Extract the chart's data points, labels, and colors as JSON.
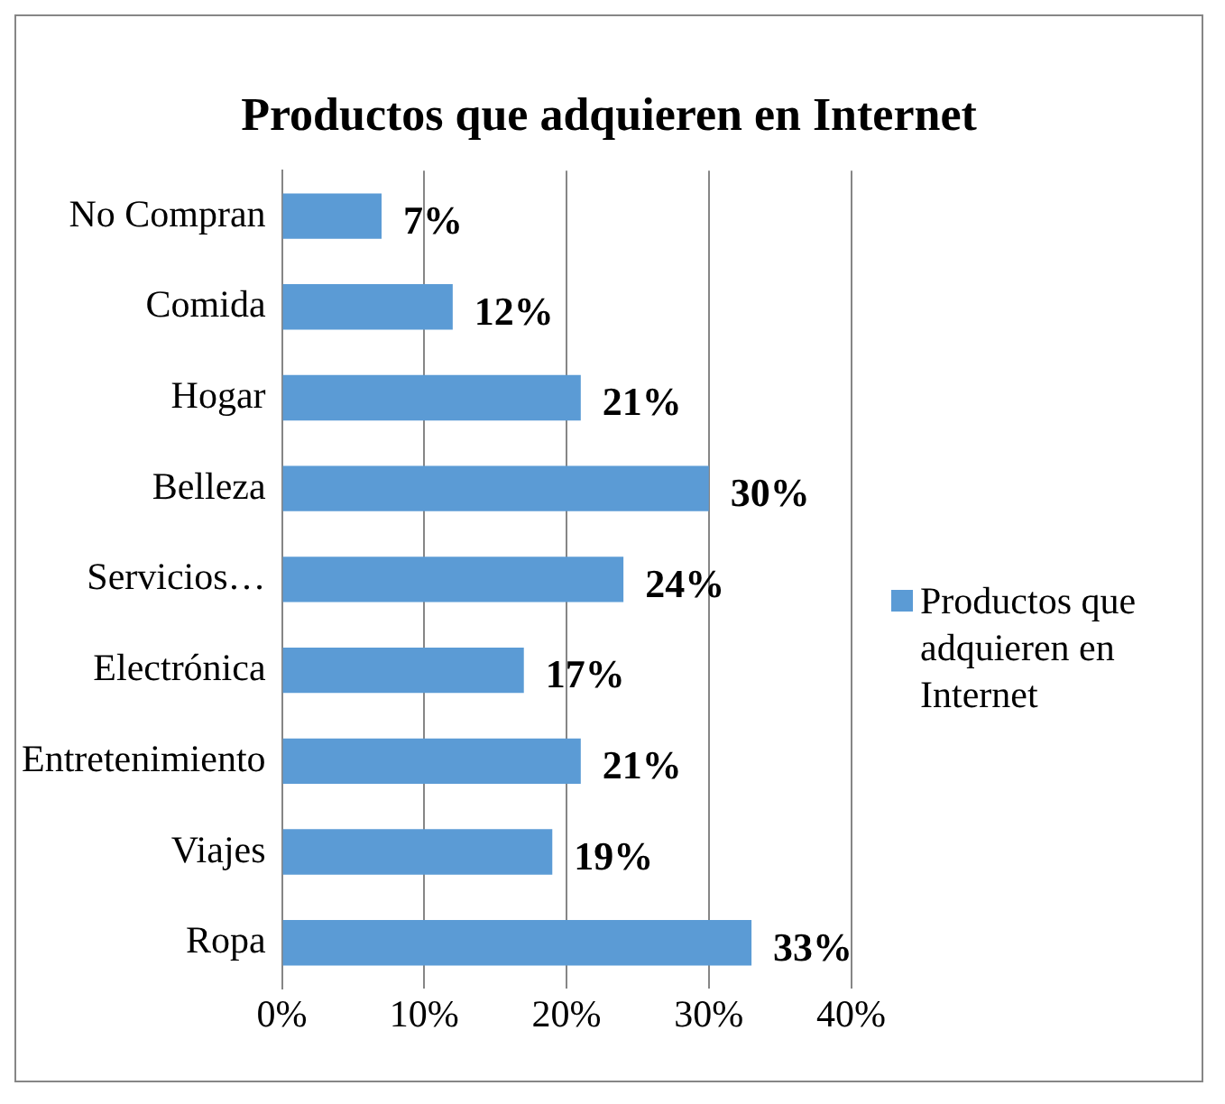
{
  "chart_data": {
    "type": "bar",
    "orientation": "horizontal",
    "title": "Productos que adquieren en Internet",
    "categories": [
      "No Compran",
      "Comida",
      "Hogar",
      "Belleza",
      "Servicios…",
      "Electrónica",
      "Entretenimiento",
      "Viajes",
      "Ropa"
    ],
    "series": [
      {
        "name": "Productos que adquieren en Internet",
        "color": "#5b9bd5",
        "values": [
          7,
          12,
          21,
          30,
          24,
          17,
          21,
          19,
          33
        ],
        "value_labels": [
          "7%",
          "12%",
          "21%",
          "30%",
          "24%",
          "17%",
          "21%",
          "19%",
          "33%"
        ]
      }
    ],
    "xlim": [
      0,
      40
    ],
    "xticks": [
      {
        "value": 0,
        "label": "0%"
      },
      {
        "value": 10,
        "label": "10%"
      },
      {
        "value": 20,
        "label": "20%"
      },
      {
        "value": 30,
        "label": "30%"
      },
      {
        "value": 40,
        "label": "40%"
      }
    ],
    "grid": "x",
    "legend": "right"
  }
}
